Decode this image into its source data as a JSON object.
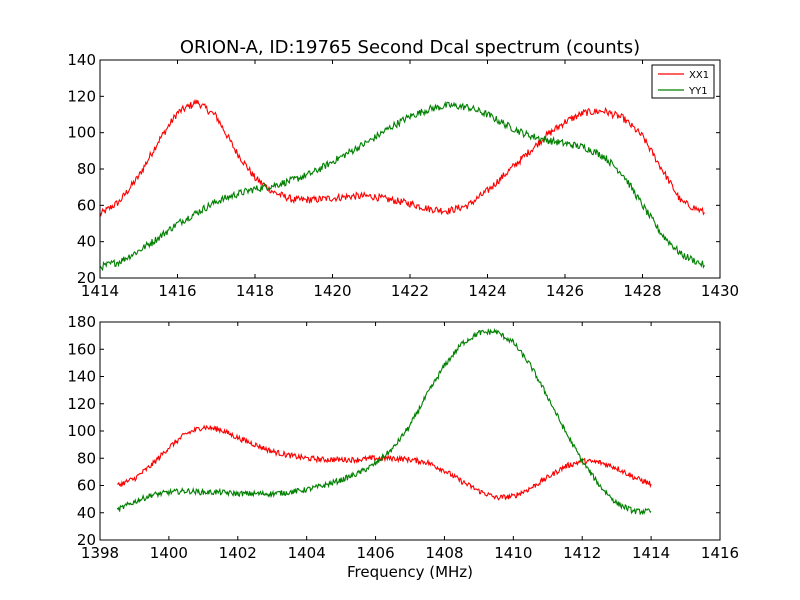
{
  "chart_data": [
    {
      "type": "line",
      "title": "ORION-A, ID:19765 Second Dcal spectrum (counts)",
      "xlabel": "",
      "ylabel": "",
      "xlim": [
        1414,
        1430
      ],
      "ylim": [
        20,
        140
      ],
      "xticks": [
        1414,
        1416,
        1418,
        1420,
        1422,
        1424,
        1426,
        1428,
        1430
      ],
      "yticks": [
        20,
        40,
        60,
        80,
        100,
        120,
        140
      ],
      "legend": {
        "placement": "top-right"
      },
      "series": [
        {
          "name": "XX1",
          "color": "#ff0000",
          "x": [
            1414.0,
            1414.5,
            1415.0,
            1415.5,
            1416.0,
            1416.5,
            1417.0,
            1417.5,
            1418.0,
            1418.5,
            1419.0,
            1419.5,
            1420.0,
            1420.5,
            1421.0,
            1421.5,
            1422.0,
            1422.5,
            1423.0,
            1423.5,
            1424.0,
            1424.5,
            1425.0,
            1425.5,
            1426.0,
            1426.5,
            1427.0,
            1427.5,
            1428.0,
            1428.5,
            1429.0,
            1429.6
          ],
          "values": [
            55,
            62,
            76,
            95,
            111,
            117,
            109,
            90,
            75,
            67,
            63,
            63,
            64,
            65,
            65,
            63,
            61,
            58,
            57,
            60,
            68,
            78,
            88,
            98,
            106,
            111,
            112,
            108,
            98,
            80,
            62,
            56
          ]
        },
        {
          "name": "YY1",
          "color": "#008000",
          "x": [
            1414.0,
            1414.5,
            1415.0,
            1415.5,
            1416.0,
            1416.5,
            1417.0,
            1417.5,
            1418.0,
            1418.5,
            1419.0,
            1419.5,
            1420.0,
            1420.5,
            1421.0,
            1421.5,
            1422.0,
            1422.5,
            1423.0,
            1423.5,
            1424.0,
            1424.5,
            1425.0,
            1425.5,
            1426.0,
            1426.5,
            1427.0,
            1427.5,
            1428.0,
            1428.5,
            1429.0,
            1429.6
          ],
          "values": [
            26,
            29,
            35,
            42,
            50,
            56,
            62,
            66,
            69,
            71,
            74,
            78,
            84,
            90,
            96,
            103,
            109,
            113,
            115,
            114,
            110,
            104,
            99,
            96,
            94,
            92,
            87,
            77,
            60,
            44,
            33,
            27
          ]
        }
      ]
    },
    {
      "type": "line",
      "title": "",
      "xlabel": "Frequency (MHz)",
      "ylabel": "",
      "xlim": [
        1398,
        1416
      ],
      "ylim": [
        20,
        180
      ],
      "xticks": [
        1398,
        1400,
        1402,
        1404,
        1406,
        1408,
        1410,
        1412,
        1414,
        1416
      ],
      "yticks": [
        20,
        40,
        60,
        80,
        100,
        120,
        140,
        160,
        180
      ],
      "series": [
        {
          "name": "XX1",
          "color": "#ff0000",
          "x": [
            1398.5,
            1399.0,
            1399.5,
            1400.0,
            1400.5,
            1401.0,
            1401.5,
            1402.0,
            1402.5,
            1403.0,
            1403.5,
            1404.0,
            1404.5,
            1405.0,
            1405.5,
            1406.0,
            1406.5,
            1407.0,
            1407.5,
            1408.0,
            1408.5,
            1409.0,
            1409.5,
            1410.0,
            1410.5,
            1411.0,
            1411.5,
            1412.0,
            1412.5,
            1413.0,
            1413.5,
            1414.0
          ],
          "values": [
            60,
            65,
            75,
            88,
            98,
            103,
            101,
            95,
            90,
            85,
            82,
            80,
            79,
            79,
            79,
            80,
            80,
            79,
            77,
            71,
            63,
            56,
            51,
            52,
            58,
            66,
            74,
            78,
            77,
            73,
            66,
            61
          ]
        },
        {
          "name": "YY1",
          "color": "#008000",
          "x": [
            1398.5,
            1399.0,
            1399.5,
            1400.0,
            1400.5,
            1401.0,
            1401.5,
            1402.0,
            1402.5,
            1403.0,
            1403.5,
            1404.0,
            1404.5,
            1405.0,
            1405.5,
            1406.0,
            1406.5,
            1407.0,
            1407.5,
            1408.0,
            1408.5,
            1409.0,
            1409.5,
            1410.0,
            1410.5,
            1411.0,
            1411.5,
            1412.0,
            1412.5,
            1413.0,
            1413.5,
            1414.0
          ],
          "values": [
            42,
            48,
            53,
            55,
            56,
            55,
            55,
            54,
            54,
            54,
            55,
            57,
            60,
            64,
            69,
            76,
            87,
            104,
            127,
            148,
            164,
            172,
            173,
            165,
            148,
            125,
            100,
            78,
            60,
            47,
            41,
            41
          ]
        }
      ]
    }
  ]
}
